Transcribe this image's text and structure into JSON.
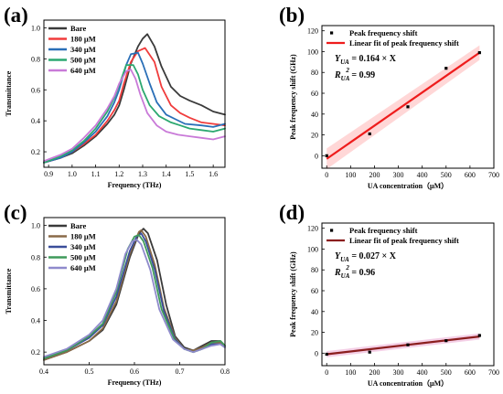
{
  "panels": [
    {
      "id": "a",
      "letter": "(a)",
      "chart_data": {
        "type": "line",
        "xlabel": "Frequency (THz)",
        "ylabel": "Transmittance",
        "xlim": [
          0.88,
          1.65
        ],
        "ylim": [
          0.1,
          1.05
        ],
        "xticks": [
          0.9,
          1.0,
          1.1,
          1.2,
          1.3,
          1.4,
          1.5,
          1.6
        ],
        "xtick_labels": [
          "0.9",
          "1.0",
          "1.1",
          "1.2",
          "1.3",
          "1.4",
          "1.5",
          "1.6"
        ],
        "yticks": [
          0.2,
          0.4,
          0.6,
          0.8,
          1.0
        ],
        "ytick_labels": [
          "0.2",
          "0.4",
          "0.6",
          "0.8",
          "1.0"
        ],
        "legend_position": "top-left",
        "grid": false,
        "series": [
          {
            "name": "Bare",
            "color": "#3a3a3a",
            "x": [
              0.88,
              0.95,
              1.0,
              1.05,
              1.1,
              1.15,
              1.18,
              1.2,
              1.22,
              1.25,
              1.28,
              1.3,
              1.32,
              1.35,
              1.38,
              1.42,
              1.46,
              1.5,
              1.55,
              1.6,
              1.65
            ],
            "y": [
              0.13,
              0.16,
              0.19,
              0.24,
              0.3,
              0.38,
              0.44,
              0.5,
              0.6,
              0.77,
              0.88,
              0.93,
              0.96,
              0.88,
              0.75,
              0.62,
              0.56,
              0.53,
              0.5,
              0.46,
              0.44
            ]
          },
          {
            "name": "180 μM",
            "color": "#f03c3c",
            "x": [
              0.88,
              0.95,
              1.0,
              1.05,
              1.1,
              1.15,
              1.18,
              1.2,
              1.22,
              1.25,
              1.28,
              1.31,
              1.35,
              1.38,
              1.42,
              1.46,
              1.5,
              1.55,
              1.6,
              1.65
            ],
            "y": [
              0.13,
              0.16,
              0.2,
              0.25,
              0.31,
              0.4,
              0.47,
              0.53,
              0.64,
              0.78,
              0.85,
              0.87,
              0.78,
              0.62,
              0.5,
              0.45,
              0.42,
              0.39,
              0.38,
              0.37
            ]
          },
          {
            "name": "340 μM",
            "color": "#2a6fb7",
            "x": [
              0.88,
              0.95,
              1.0,
              1.05,
              1.1,
              1.15,
              1.18,
              1.2,
              1.23,
              1.25,
              1.28,
              1.3,
              1.33,
              1.36,
              1.4,
              1.44,
              1.48,
              1.55,
              1.6,
              1.65
            ],
            "y": [
              0.13,
              0.16,
              0.2,
              0.26,
              0.33,
              0.43,
              0.52,
              0.6,
              0.76,
              0.83,
              0.84,
              0.77,
              0.64,
              0.52,
              0.44,
              0.41,
              0.38,
              0.37,
              0.36,
              0.38
            ]
          },
          {
            "name": "500 μM",
            "color": "#2ca870",
            "x": [
              0.88,
              0.95,
              1.0,
              1.05,
              1.1,
              1.15,
              1.18,
              1.2,
              1.23,
              1.26,
              1.28,
              1.3,
              1.33,
              1.37,
              1.42,
              1.46,
              1.5,
              1.55,
              1.6,
              1.65
            ],
            "y": [
              0.13,
              0.17,
              0.21,
              0.27,
              0.35,
              0.46,
              0.55,
              0.63,
              0.76,
              0.76,
              0.7,
              0.6,
              0.5,
              0.43,
              0.39,
              0.37,
              0.35,
              0.34,
              0.33,
              0.35
            ]
          },
          {
            "name": "640 μM",
            "color": "#c97ad8",
            "x": [
              0.88,
              0.95,
              1.0,
              1.05,
              1.1,
              1.15,
              1.18,
              1.2,
              1.23,
              1.25,
              1.27,
              1.29,
              1.32,
              1.36,
              1.4,
              1.45,
              1.5,
              1.55,
              1.6,
              1.65
            ],
            "y": [
              0.14,
              0.18,
              0.22,
              0.29,
              0.37,
              0.48,
              0.56,
              0.64,
              0.72,
              0.73,
              0.67,
              0.57,
              0.45,
              0.37,
              0.33,
              0.31,
              0.3,
              0.29,
              0.28,
              0.3
            ]
          }
        ]
      }
    },
    {
      "id": "b",
      "letter": "(b)",
      "chart_data": {
        "type": "scatter",
        "xlabel": "UA concentration（μM）",
        "ylabel": "Peak frequency shift (GHz)",
        "xlim": [
          -20,
          700
        ],
        "ylim": [
          -12,
          125
        ],
        "xticks": [
          0,
          100,
          200,
          300,
          400,
          500,
          600,
          700
        ],
        "xtick_labels": [
          "0",
          "100",
          "200",
          "300",
          "400",
          "500",
          "600",
          "700"
        ],
        "yticks": [
          0,
          20,
          40,
          60,
          80,
          100,
          120
        ],
        "ytick_labels": [
          "0",
          "20",
          "40",
          "60",
          "80",
          "100",
          "120"
        ],
        "legend_position": "top-left",
        "grid": false,
        "points": {
          "name": "Peak frequency shift",
          "color": "#000000",
          "x": [
            0,
            180,
            340,
            500,
            640
          ],
          "y": [
            0,
            21,
            47,
            84,
            99
          ]
        },
        "fit": {
          "name": "Linear fit of peak frequency shift",
          "color": "#ee1c1c",
          "x": [
            0,
            640
          ],
          "y": [
            -3,
            99
          ]
        },
        "band": {
          "color": "#ffd7d7",
          "x": [
            0,
            640
          ],
          "low": [
            -13,
            92
          ],
          "high": [
            7,
            106
          ]
        },
        "annotation": {
          "eq_y": "Y",
          "eq_sub": "UA",
          "eq_rhs": "= 0.164 × X",
          "r_base": "R",
          "r_sub": "UA",
          "r_sup": "2",
          "r_rhs": " = 0.99"
        }
      }
    },
    {
      "id": "c",
      "letter": "(c)",
      "chart_data": {
        "type": "line",
        "xlabel": "Frequency (THz)",
        "ylabel": "Transmittance",
        "xlim": [
          0.4,
          0.8
        ],
        "ylim": [
          0.12,
          1.05
        ],
        "xticks": [
          0.4,
          0.5,
          0.6,
          0.7,
          0.8
        ],
        "xtick_labels": [
          "0.4",
          "0.5",
          "0.6",
          "0.7",
          "0.8"
        ],
        "yticks": [
          0.2,
          0.4,
          0.6,
          0.8,
          1.0
        ],
        "ytick_labels": [
          "0.2",
          "0.4",
          "0.6",
          "0.8",
          "1.0"
        ],
        "legend_position": "top-left",
        "grid": false,
        "series": [
          {
            "name": "Bare",
            "color": "#3a3a3a",
            "x": [
              0.4,
              0.45,
              0.5,
              0.53,
              0.56,
              0.59,
              0.61,
              0.62,
              0.63,
              0.65,
              0.67,
              0.69,
              0.71,
              0.73,
              0.75,
              0.77,
              0.79,
              0.8
            ],
            "y": [
              0.15,
              0.2,
              0.27,
              0.34,
              0.5,
              0.8,
              0.95,
              0.98,
              0.95,
              0.78,
              0.5,
              0.3,
              0.23,
              0.21,
              0.24,
              0.27,
              0.27,
              0.24
            ]
          },
          {
            "name": "180 μM",
            "color": "#8a6a48",
            "x": [
              0.4,
              0.45,
              0.5,
              0.53,
              0.56,
              0.59,
              0.61,
              0.615,
              0.625,
              0.645,
              0.665,
              0.69,
              0.71,
              0.73,
              0.75,
              0.77,
              0.79,
              0.8
            ],
            "y": [
              0.15,
              0.2,
              0.27,
              0.35,
              0.52,
              0.82,
              0.96,
              0.97,
              0.93,
              0.75,
              0.48,
              0.29,
              0.22,
              0.21,
              0.23,
              0.26,
              0.26,
              0.24
            ]
          },
          {
            "name": "340 μM",
            "color": "#3a4e9a",
            "x": [
              0.4,
              0.45,
              0.5,
              0.53,
              0.56,
              0.59,
              0.605,
              0.615,
              0.625,
              0.645,
              0.665,
              0.69,
              0.71,
              0.73,
              0.75,
              0.77,
              0.79,
              0.8
            ],
            "y": [
              0.16,
              0.21,
              0.29,
              0.37,
              0.55,
              0.84,
              0.93,
              0.95,
              0.9,
              0.72,
              0.46,
              0.28,
              0.22,
              0.2,
              0.22,
              0.25,
              0.25,
              0.23
            ]
          },
          {
            "name": "500 μM",
            "color": "#3f9a5a",
            "x": [
              0.4,
              0.45,
              0.5,
              0.53,
              0.56,
              0.585,
              0.6,
              0.61,
              0.62,
              0.64,
              0.66,
              0.69,
              0.71,
              0.73,
              0.75,
              0.77,
              0.79,
              0.8
            ],
            "y": [
              0.16,
              0.21,
              0.3,
              0.38,
              0.58,
              0.85,
              0.93,
              0.94,
              0.9,
              0.73,
              0.47,
              0.27,
              0.22,
              0.2,
              0.22,
              0.26,
              0.27,
              0.24
            ]
          },
          {
            "name": "640 μM",
            "color": "#8f8acc",
            "x": [
              0.4,
              0.45,
              0.5,
              0.53,
              0.56,
              0.58,
              0.595,
              0.605,
              0.615,
              0.635,
              0.655,
              0.685,
              0.71,
              0.73,
              0.75,
              0.77,
              0.79,
              0.8
            ],
            "y": [
              0.17,
              0.22,
              0.31,
              0.4,
              0.6,
              0.82,
              0.9,
              0.91,
              0.88,
              0.72,
              0.47,
              0.28,
              0.22,
              0.2,
              0.22,
              0.24,
              0.25,
              0.23
            ]
          }
        ]
      }
    },
    {
      "id": "d",
      "letter": "(d)",
      "chart_data": {
        "type": "scatter",
        "xlabel": "UA concentration（μM）",
        "ylabel": "Peak frequency shift (GHz)",
        "xlim": [
          -20,
          700
        ],
        "ylim": [
          -12,
          125
        ],
        "xticks": [
          0,
          100,
          200,
          300,
          400,
          500,
          600,
          700
        ],
        "xtick_labels": [
          "0",
          "100",
          "200",
          "300",
          "400",
          "500",
          "600",
          "700"
        ],
        "yticks": [
          0,
          20,
          40,
          60,
          80,
          100,
          120
        ],
        "ytick_labels": [
          "0",
          "20",
          "40",
          "60",
          "80",
          "100",
          "120"
        ],
        "legend_position": "top-left",
        "grid": false,
        "points": {
          "name": "Peak frequency shift",
          "color": "#000000",
          "x": [
            0,
            180,
            340,
            500,
            640
          ],
          "y": [
            -1,
            1,
            8,
            12,
            17
          ]
        },
        "fit": {
          "name": "Linear fit of peak frequency shift",
          "color": "#8b1e1e",
          "x": [
            0,
            640
          ],
          "y": [
            -1,
            16
          ]
        },
        "band": {
          "color": "#f4cfe6",
          "x": [
            0,
            640
          ],
          "low": [
            -4,
            13
          ],
          "high": [
            2,
            19
          ]
        },
        "annotation": {
          "eq_y": "Y",
          "eq_sub": "UA",
          "eq_rhs": "= 0.027 × X",
          "r_base": "R",
          "r_sub": "UA",
          "r_sup": "2",
          "r_rhs": " = 0.96"
        }
      }
    }
  ]
}
